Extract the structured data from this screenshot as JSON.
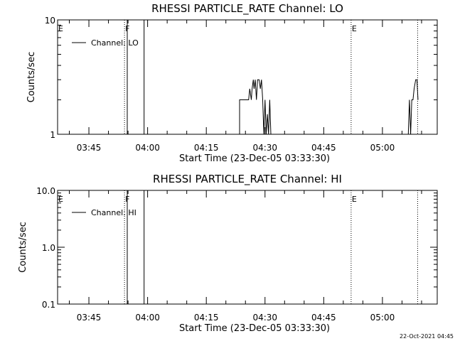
{
  "chart_data": [
    {
      "type": "line",
      "title": "RHESSI PARTICLE_RATE Channel: LO",
      "xlabel": "Start Time (23-Dec-05 03:33:30)",
      "ylabel": "Counts/sec",
      "y_scale": "log",
      "ylim": [
        1,
        10
      ],
      "y_ticks": [
        "1",
        "10"
      ],
      "x_ticks": [
        {
          "label": "03:45",
          "t": 41.5
        },
        {
          "label": "04:00",
          "t": 56.5
        },
        {
          "label": "04:15",
          "t": 71.5
        },
        {
          "label": "04:30",
          "t": 86.5
        },
        {
          "label": "04:45",
          "t": 101.5
        },
        {
          "label": "05:00",
          "t": 116.5
        }
      ],
      "xlim": [
        33.5,
        130.5
      ],
      "legend": {
        "placement": "top-left",
        "entries": [
          "Channel: LO"
        ]
      },
      "flags": [
        {
          "label": "E",
          "t": 33.5,
          "style": "dotted"
        },
        {
          "label": "F",
          "t": 50.6,
          "style": "dotted"
        },
        {
          "label": "",
          "t": 51.3,
          "style": "solid"
        },
        {
          "label": "",
          "t": 55.6,
          "style": "solid"
        },
        {
          "label": "E",
          "t": 108.5,
          "style": "dotted"
        },
        {
          "label": "",
          "t": 125.5,
          "style": "dotted"
        }
      ],
      "series": [
        {
          "name": "Channel: LO",
          "segments": [
            {
              "t": [
                80.0,
                80.0,
                82.3,
                82.6,
                83.0,
                83.2,
                83.5,
                83.7,
                84.0,
                84.3,
                84.6,
                85.0,
                85.3,
                85.6,
                85.9,
                86.2,
                86.5,
                86.8,
                87.1,
                87.4,
                87.7,
                88.0,
                88.3
              ],
              "v": [
                1,
                2,
                2,
                2.5,
                2,
                2.5,
                3,
                2.5,
                3,
                2,
                3,
                3,
                2.5,
                3,
                2,
                1,
                2,
                1,
                1.5,
                1,
                2,
                1,
                1
              ]
            },
            {
              "t": [
                123.1,
                123.4,
                123.7,
                124.0,
                124.3,
                124.6,
                125.0,
                125.3,
                125.6
              ],
              "v": [
                1,
                2,
                1,
                2,
                2,
                2.5,
                3,
                3,
                2
              ]
            }
          ]
        }
      ]
    },
    {
      "type": "line",
      "title": "RHESSI PARTICLE_RATE Channel: HI",
      "xlabel": "Start Time (23-Dec-05 03:33:30)",
      "ylabel": "Counts/sec",
      "y_scale": "log",
      "ylim": [
        0.1,
        10
      ],
      "y_ticks": [
        "0.1",
        "1.0",
        "10.0"
      ],
      "x_ticks": [
        {
          "label": "03:45",
          "t": 41.5
        },
        {
          "label": "04:00",
          "t": 56.5
        },
        {
          "label": "04:15",
          "t": 71.5
        },
        {
          "label": "04:30",
          "t": 86.5
        },
        {
          "label": "04:45",
          "t": 101.5
        },
        {
          "label": "05:00",
          "t": 116.5
        }
      ],
      "xlim": [
        33.5,
        130.5
      ],
      "legend": {
        "placement": "top-left",
        "entries": [
          "Channel: HI"
        ]
      },
      "flags": [
        {
          "label": "E",
          "t": 33.5,
          "style": "dotted"
        },
        {
          "label": "F",
          "t": 50.6,
          "style": "dotted"
        },
        {
          "label": "",
          "t": 51.3,
          "style": "solid"
        },
        {
          "label": "",
          "t": 55.6,
          "style": "solid"
        },
        {
          "label": "E",
          "t": 108.5,
          "style": "dotted"
        },
        {
          "label": "",
          "t": 125.5,
          "style": "dotted"
        }
      ],
      "series": [
        {
          "name": "Channel: HI",
          "segments": []
        }
      ]
    }
  ],
  "footer": {
    "timestamp": "22-Oct-2021 04:45"
  }
}
